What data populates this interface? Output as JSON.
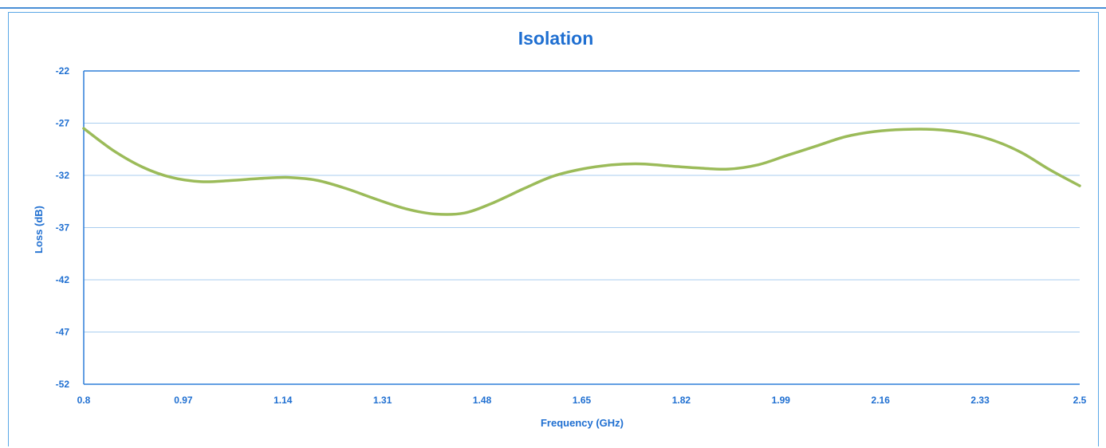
{
  "chart_data": {
    "type": "line",
    "title": "Isolation",
    "xlabel": "Frequency (GHz)",
    "ylabel": "Loss (dB)",
    "xlim": [
      0.8,
      2.5
    ],
    "ylim": [
      -52,
      -22
    ],
    "x_ticks": [
      "0.8",
      "0.97",
      "1.14",
      "1.31",
      "1.48",
      "1.65",
      "1.82",
      "1.99",
      "2.16",
      "2.33",
      "2.5"
    ],
    "y_ticks": [
      "-22",
      "-27",
      "-32",
      "-37",
      "-42",
      "-47",
      "-52"
    ],
    "grid": "horizontal",
    "legend": "none",
    "series": [
      {
        "color": "#9bbb59",
        "x": [
          0.8,
          0.85,
          0.9,
          0.95,
          1.0,
          1.05,
          1.1,
          1.15,
          1.2,
          1.25,
          1.3,
          1.35,
          1.4,
          1.45,
          1.5,
          1.55,
          1.6,
          1.65,
          1.7,
          1.75,
          1.8,
          1.85,
          1.9,
          1.95,
          2.0,
          2.05,
          2.1,
          2.15,
          2.2,
          2.25,
          2.3,
          2.35,
          2.4,
          2.45,
          2.5
        ],
        "y": [
          -27.5,
          -29.6,
          -31.2,
          -32.2,
          -32.6,
          -32.5,
          -32.3,
          -32.2,
          -32.5,
          -33.3,
          -34.3,
          -35.2,
          -35.7,
          -35.6,
          -34.6,
          -33.3,
          -32.1,
          -31.4,
          -31.0,
          -30.9,
          -31.1,
          -31.3,
          -31.4,
          -31.0,
          -30.1,
          -29.2,
          -28.3,
          -27.8,
          -27.6,
          -27.6,
          -27.9,
          -28.6,
          -29.8,
          -31.5,
          -33.0
        ]
      }
    ]
  },
  "colors": {
    "title": "#1f6fd1",
    "axis": "#2f7fd8",
    "grid": "#a9cdef",
    "frame": "#5aa7e6",
    "line": "#9bbb59"
  }
}
